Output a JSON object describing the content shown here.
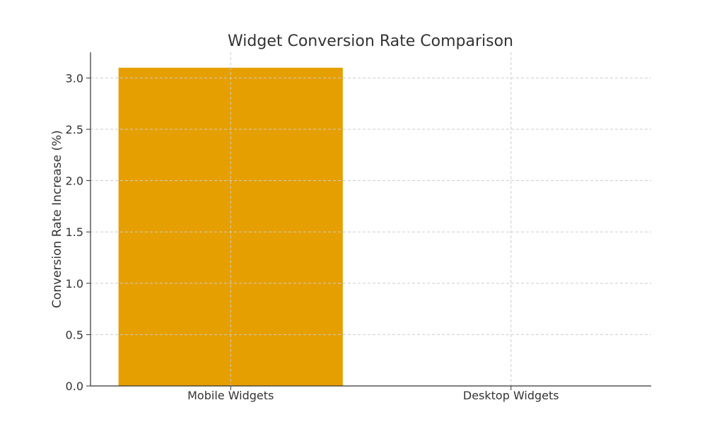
{
  "chart_data": {
    "type": "bar",
    "title": "Widget Conversion Rate Comparison",
    "xlabel": "",
    "ylabel": "Conversion Rate Increase (%)",
    "categories": [
      "Mobile Widgets",
      "Desktop Widgets"
    ],
    "values": [
      3.1,
      0
    ],
    "ylim": [
      0,
      3.25
    ],
    "yticks": [
      "0.0",
      "0.5",
      "1.0",
      "1.5",
      "2.0",
      "2.5",
      "3.0"
    ],
    "bar_color": "#E69F00",
    "grid": true,
    "legend": "none"
  }
}
